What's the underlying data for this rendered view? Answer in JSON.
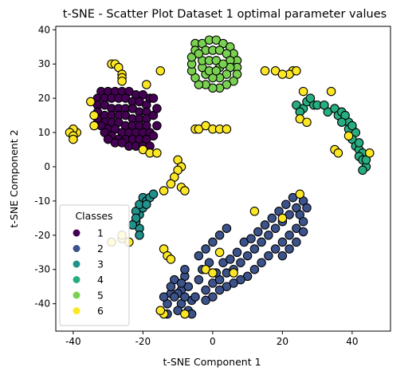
{
  "chart_data": {
    "type": "scatter",
    "title": "t-SNE - Scatter Plot Dataset 1 optimal parameter values",
    "xlabel": "t-SNE Component 1",
    "ylabel": "t-SNE Component 2",
    "xlim": [
      -45,
      51
    ],
    "ylim": [
      -48,
      41
    ],
    "xticks": [
      -40,
      -20,
      0,
      20,
      40
    ],
    "yticks": [
      -40,
      -30,
      -20,
      -10,
      0,
      10,
      20,
      30,
      40
    ],
    "grid": false,
    "legend": {
      "title": "Classes",
      "placement": "lower-left",
      "entries": [
        "1",
        "2",
        "3",
        "4",
        "5",
        "6"
      ]
    },
    "series": [
      {
        "name": "1",
        "color": "#440154",
        "points": [
          [
            -32,
            22
          ],
          [
            -30,
            22
          ],
          [
            -28,
            22
          ],
          [
            -26,
            22
          ],
          [
            -24,
            22
          ],
          [
            -22,
            21
          ],
          [
            -20,
            21
          ],
          [
            -18,
            20
          ],
          [
            -33,
            20
          ],
          [
            -31,
            20
          ],
          [
            -29,
            20
          ],
          [
            -27,
            20
          ],
          [
            -25,
            20
          ],
          [
            -23,
            19
          ],
          [
            -21,
            19
          ],
          [
            -19,
            18
          ],
          [
            -33,
            18
          ],
          [
            -31,
            18
          ],
          [
            -29,
            17
          ],
          [
            -27,
            17
          ],
          [
            -25,
            17
          ],
          [
            -23,
            17
          ],
          [
            -21,
            16
          ],
          [
            -19,
            16
          ],
          [
            -33,
            16
          ],
          [
            -31,
            15
          ],
          [
            -29,
            15
          ],
          [
            -27,
            15
          ],
          [
            -25,
            15
          ],
          [
            -23,
            14
          ],
          [
            -21,
            14
          ],
          [
            -19,
            14
          ],
          [
            -33,
            14
          ],
          [
            -31,
            13
          ],
          [
            -29,
            13
          ],
          [
            -27,
            13
          ],
          [
            -25,
            12
          ],
          [
            -23,
            12
          ],
          [
            -21,
            12
          ],
          [
            -19,
            12
          ],
          [
            -32,
            12
          ],
          [
            -30,
            11
          ],
          [
            -28,
            11
          ],
          [
            -26,
            10
          ],
          [
            -24,
            10
          ],
          [
            -22,
            10
          ],
          [
            -20,
            10
          ],
          [
            -18,
            10
          ],
          [
            -31,
            10
          ],
          [
            -29,
            9
          ],
          [
            -27,
            8
          ],
          [
            -25,
            8
          ],
          [
            -23,
            8
          ],
          [
            -21,
            8
          ],
          [
            -19,
            8
          ],
          [
            -17,
            9
          ],
          [
            -30,
            8
          ],
          [
            -28,
            7
          ],
          [
            -26,
            7
          ],
          [
            -24,
            6
          ],
          [
            -22,
            6
          ],
          [
            -20,
            6
          ],
          [
            -18,
            6
          ],
          [
            -17,
            15
          ],
          [
            -17,
            20
          ],
          [
            -16,
            17
          ],
          [
            -16,
            12
          ]
        ]
      },
      {
        "name": "2",
        "color": "#3b528b",
        "points": [
          [
            -11,
            -33
          ],
          [
            -9,
            -36
          ],
          [
            -8,
            -32
          ],
          [
            -10,
            -37
          ],
          [
            -7,
            -35
          ],
          [
            -12,
            -37
          ],
          [
            -6,
            -39
          ],
          [
            -9,
            -40
          ],
          [
            -5,
            -38
          ],
          [
            -10,
            -42
          ],
          [
            -7,
            -42
          ],
          [
            -13,
            -40
          ],
          [
            -11,
            -38
          ],
          [
            -6,
            -43
          ],
          [
            -8,
            -38
          ],
          [
            -4,
            -33
          ],
          [
            -2,
            -36
          ],
          [
            0,
            -34
          ],
          [
            2,
            -33
          ],
          [
            4,
            -31
          ],
          [
            6,
            -30
          ],
          [
            8,
            -28
          ],
          [
            10,
            -26
          ],
          [
            12,
            -24
          ],
          [
            14,
            -22
          ],
          [
            16,
            -20
          ],
          [
            18,
            -18
          ],
          [
            20,
            -16
          ],
          [
            22,
            -14
          ],
          [
            24,
            -12
          ],
          [
            26,
            -10
          ],
          [
            -3,
            -30
          ],
          [
            -1,
            -28
          ],
          [
            1,
            -31
          ],
          [
            3,
            -28
          ],
          [
            5,
            -27
          ],
          [
            7,
            -25
          ],
          [
            9,
            -22
          ],
          [
            11,
            -21
          ],
          [
            13,
            -19
          ],
          [
            15,
            -17
          ],
          [
            17,
            -15
          ],
          [
            19,
            -13
          ],
          [
            21,
            -11
          ],
          [
            23,
            -9
          ],
          [
            25,
            -14
          ],
          [
            27,
            -12
          ],
          [
            26,
            -16
          ],
          [
            24,
            -18
          ],
          [
            22,
            -20
          ],
          [
            20,
            -22
          ],
          [
            18,
            -24
          ],
          [
            16,
            -26
          ],
          [
            14,
            -28
          ],
          [
            12,
            -30
          ],
          [
            10,
            -32
          ],
          [
            8,
            -33
          ],
          [
            6,
            -34
          ],
          [
            4,
            -35
          ],
          [
            2,
            -36
          ],
          [
            0,
            -38
          ],
          [
            -2,
            -39
          ],
          [
            24,
            -22
          ],
          [
            26,
            -19
          ],
          [
            22,
            -24
          ],
          [
            20,
            -26
          ],
          [
            -4,
            -26
          ],
          [
            -2,
            -24
          ],
          [
            0,
            -22
          ],
          [
            2,
            -20
          ],
          [
            4,
            -18
          ],
          [
            -8,
            -30
          ],
          [
            -9,
            -34
          ],
          [
            -12,
            -35
          ],
          [
            -14,
            -38
          ],
          [
            -15,
            -42
          ],
          [
            -13,
            -43
          ]
        ]
      },
      {
        "name": "3",
        "color": "#21918c",
        "points": [
          [
            -21,
            -18
          ],
          [
            -22,
            -16
          ],
          [
            -21,
            -14
          ],
          [
            -22,
            -13
          ],
          [
            -20,
            -12
          ],
          [
            -21,
            -11
          ],
          [
            -20,
            -9
          ],
          [
            -19,
            -10
          ],
          [
            -18,
            -9
          ],
          [
            -17,
            -8
          ],
          [
            -19,
            -11
          ],
          [
            -22,
            -15
          ],
          [
            -23,
            -17
          ],
          [
            -21,
            -20
          ]
        ]
      },
      {
        "name": "4",
        "color": "#27ad81",
        "points": [
          [
            24,
            18
          ],
          [
            26,
            17
          ],
          [
            27,
            19
          ],
          [
            29,
            18
          ],
          [
            30,
            18
          ],
          [
            28,
            20
          ],
          [
            33,
            16
          ],
          [
            35,
            17
          ],
          [
            36,
            15
          ],
          [
            37,
            16
          ],
          [
            38,
            14
          ],
          [
            39,
            13
          ],
          [
            40,
            11
          ],
          [
            41,
            10
          ],
          [
            40,
            8
          ],
          [
            41,
            6
          ],
          [
            42,
            5
          ],
          [
            43,
            4
          ],
          [
            42,
            3
          ],
          [
            43,
            2
          ],
          [
            44,
            0
          ],
          [
            43,
            -1
          ],
          [
            38,
            15
          ],
          [
            37,
            13
          ],
          [
            39,
            11
          ],
          [
            40,
            12
          ],
          [
            42,
            7
          ],
          [
            44,
            2
          ],
          [
            25,
            16
          ],
          [
            32,
            18
          ]
        ]
      },
      {
        "name": "5",
        "color": "#7ad151",
        "points": [
          [
            -5,
            36
          ],
          [
            -3,
            36
          ],
          [
            -1,
            37
          ],
          [
            1,
            37
          ],
          [
            3,
            36
          ],
          [
            5,
            35
          ],
          [
            6,
            33
          ],
          [
            7,
            31
          ],
          [
            7,
            29
          ],
          [
            7,
            27
          ],
          [
            6,
            25
          ],
          [
            4,
            24
          ],
          [
            2,
            23
          ],
          [
            0,
            23
          ],
          [
            -2,
            24
          ],
          [
            -4,
            24
          ],
          [
            -5,
            26
          ],
          [
            -6,
            28
          ],
          [
            -6,
            30
          ],
          [
            -6,
            32
          ],
          [
            -5,
            34
          ],
          [
            -2,
            34
          ],
          [
            0,
            34
          ],
          [
            2,
            34
          ],
          [
            4,
            33
          ],
          [
            5,
            31
          ],
          [
            5,
            29
          ],
          [
            4,
            27
          ],
          [
            2,
            26
          ],
          [
            0,
            26
          ],
          [
            -2,
            27
          ],
          [
            -3,
            29
          ],
          [
            -3,
            31
          ],
          [
            -1,
            31
          ],
          [
            1,
            31
          ],
          [
            2,
            29
          ],
          [
            -1,
            28
          ],
          [
            1,
            28
          ],
          [
            3,
            30
          ],
          [
            -4,
            33
          ]
        ]
      },
      {
        "name": "6",
        "color": "#fde725",
        "points": [
          [
            -29,
            30
          ],
          [
            -28,
            30
          ],
          [
            -27,
            29
          ],
          [
            -26,
            27
          ],
          [
            -26,
            26
          ],
          [
            -26,
            25
          ],
          [
            -15,
            28
          ],
          [
            -19,
            24
          ],
          [
            -35,
            19
          ],
          [
            -34,
            15
          ],
          [
            -34,
            12
          ],
          [
            -39,
            10
          ],
          [
            -40,
            11
          ],
          [
            -41,
            10
          ],
          [
            -40,
            9
          ],
          [
            -40,
            8
          ],
          [
            -20,
            5
          ],
          [
            -18,
            4
          ],
          [
            -16,
            4
          ],
          [
            -10,
            2
          ],
          [
            -9,
            0
          ],
          [
            -10,
            -1
          ],
          [
            -11,
            -3
          ],
          [
            -12,
            -5
          ],
          [
            -14,
            -7
          ],
          [
            -9,
            -6
          ],
          [
            -8,
            -7
          ],
          [
            -14,
            -24
          ],
          [
            -13,
            -26
          ],
          [
            -12,
            -27
          ],
          [
            -29,
            -22
          ],
          [
            -26,
            -21
          ],
          [
            -24,
            -22
          ],
          [
            -5,
            11
          ],
          [
            -4,
            11
          ],
          [
            -2,
            12
          ],
          [
            0,
            11
          ],
          [
            2,
            11
          ],
          [
            4,
            11
          ],
          [
            18,
            28
          ],
          [
            23,
            28
          ],
          [
            22,
            27
          ],
          [
            24,
            28
          ],
          [
            20,
            27
          ],
          [
            15,
            28
          ],
          [
            25,
            14
          ],
          [
            27,
            13
          ],
          [
            26,
            22
          ],
          [
            34,
            22
          ],
          [
            35,
            5
          ],
          [
            36,
            4
          ],
          [
            39,
            9
          ],
          [
            45,
            4
          ],
          [
            25,
            -8
          ],
          [
            20,
            -15
          ],
          [
            12,
            -13
          ],
          [
            -2,
            -30
          ],
          [
            0,
            -31
          ],
          [
            6,
            -31
          ],
          [
            2,
            -25
          ],
          [
            -14,
            -43
          ],
          [
            -8,
            -43
          ],
          [
            -15,
            -42
          ],
          [
            -26,
            -20
          ]
        ]
      }
    ]
  }
}
